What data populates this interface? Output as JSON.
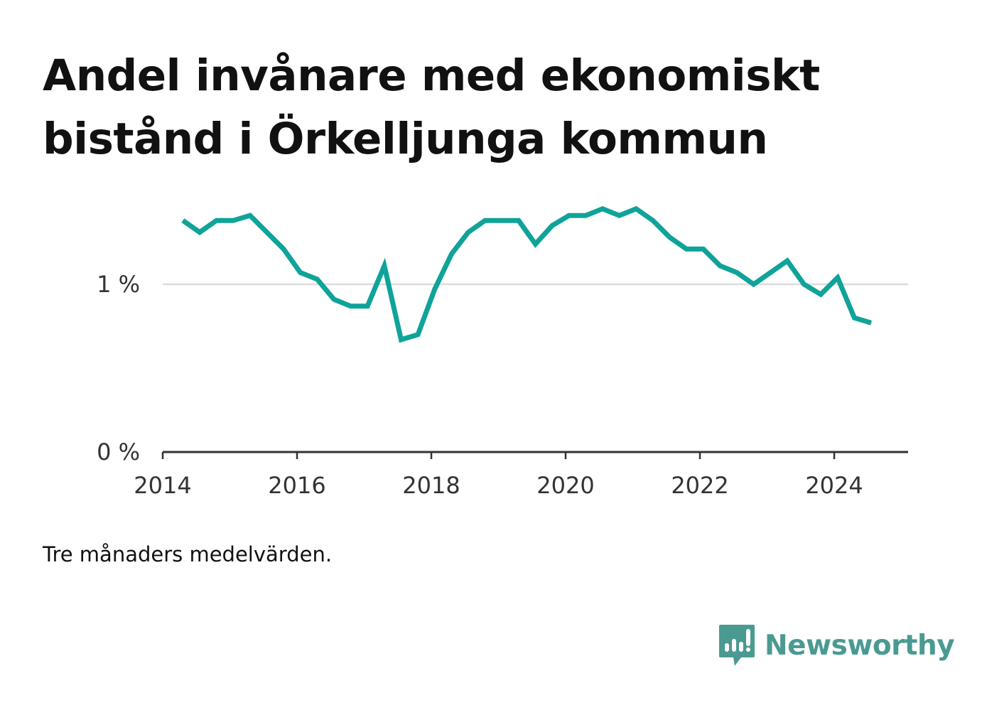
{
  "title": "Andel invånare med ekonomiskt bistånd i Örkelljunga kommun",
  "note": "Tre månaders medelvärden.",
  "brand": {
    "name": "Newsworthy",
    "icon": "bar-chart-speech-bubble-icon",
    "color": "#4a9a92"
  },
  "colors": {
    "line": "#0fa399",
    "grid": "#dddddd",
    "axis": "#333333"
  },
  "chart_data": {
    "type": "line",
    "title": "Andel invånare med ekonomiskt bistånd i Örkelljunga kommun",
    "xlabel": "",
    "ylabel": "",
    "xlim": [
      2014,
      2025.1
    ],
    "ylim": [
      0,
      1.5
    ],
    "x_ticks": [
      {
        "value": 2014,
        "label": "2014"
      },
      {
        "value": 2016,
        "label": "2016"
      },
      {
        "value": 2018,
        "label": "2018"
      },
      {
        "value": 2020,
        "label": "2020"
      },
      {
        "value": 2022,
        "label": "2022"
      },
      {
        "value": 2024,
        "label": "2024"
      }
    ],
    "y_ticks": [
      {
        "value": 0,
        "label": "0 %"
      },
      {
        "value": 1,
        "label": "1 %"
      }
    ],
    "grid": true,
    "legend": "none",
    "series": [
      {
        "x": [
          2014.3,
          2014.55,
          2014.8,
          2015.05,
          2015.3,
          2015.55,
          2015.8,
          2016.05,
          2016.3,
          2016.55,
          2016.8,
          2017.05,
          2017.3,
          2017.55,
          2017.8,
          2018.05,
          2018.3,
          2018.55,
          2018.8,
          2019.05,
          2019.3,
          2019.55,
          2019.8,
          2020.05,
          2020.3,
          2020.55,
          2020.8,
          2021.05,
          2021.3,
          2021.55,
          2021.8,
          2022.05,
          2022.3,
          2022.55,
          2022.8,
          2023.05,
          2023.3,
          2023.55,
          2023.8,
          2024.05,
          2024.3,
          2024.55
        ],
        "values": [
          1.38,
          1.31,
          1.38,
          1.38,
          1.41,
          1.31,
          1.21,
          1.07,
          1.03,
          0.91,
          0.87,
          0.87,
          1.11,
          0.67,
          0.7,
          0.97,
          1.18,
          1.31,
          1.38,
          1.38,
          1.38,
          1.24,
          1.35,
          1.41,
          1.41,
          1.45,
          1.41,
          1.45,
          1.38,
          1.28,
          1.21,
          1.21,
          1.11,
          1.07,
          1.0,
          1.07,
          1.14,
          1.0,
          0.94,
          1.04,
          0.8,
          0.77
        ]
      }
    ]
  }
}
